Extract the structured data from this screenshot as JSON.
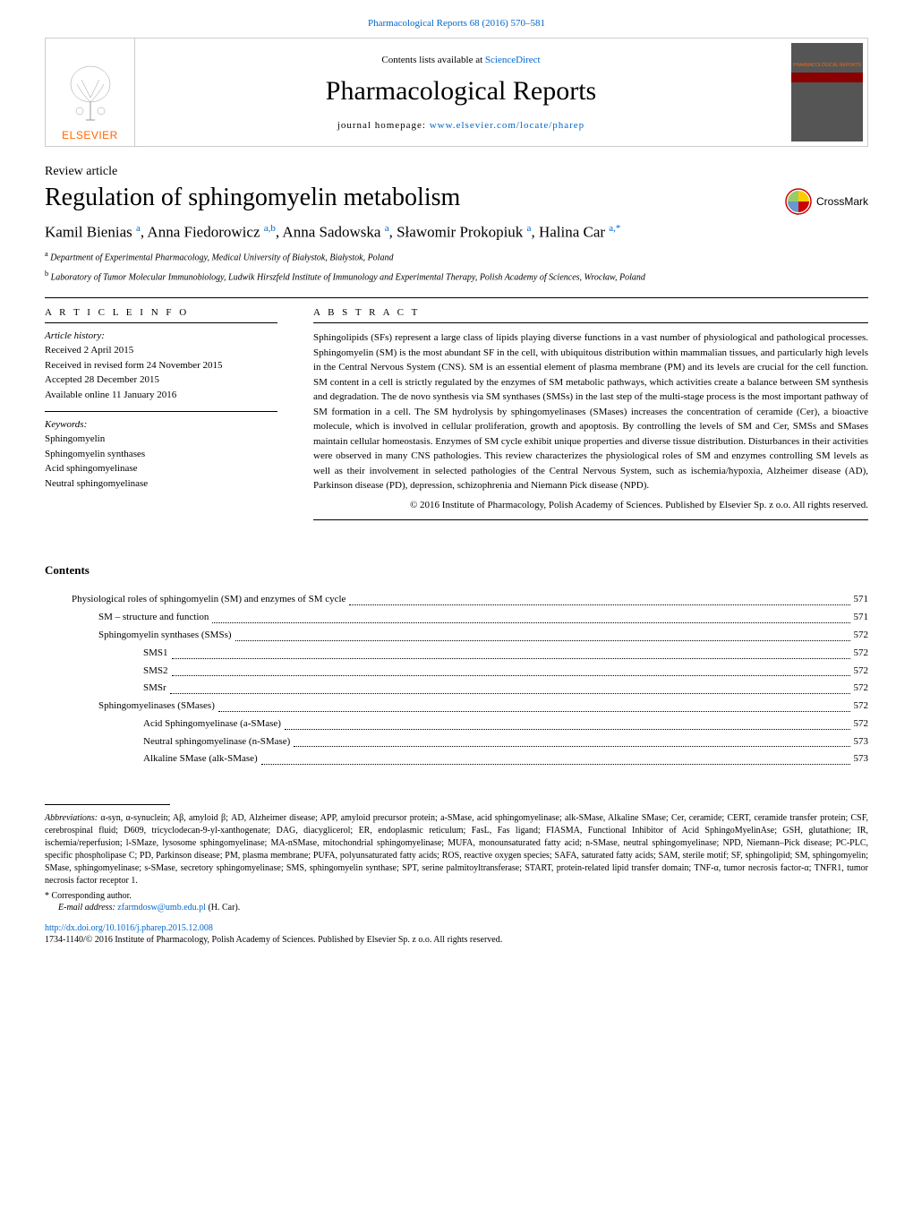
{
  "top_reference": "Pharmacological Reports 68 (2016) 570–581",
  "banner": {
    "contents_available": "Contents lists available at ",
    "sciencedirect": "ScienceDirect",
    "journal_name": "Pharmacological Reports",
    "homepage_label": "journal homepage: ",
    "homepage_url": "www.elsevier.com/locate/pharep",
    "publisher": "ELSEVIER",
    "cover_text": "PHARMACOLOGICAL REPORTS"
  },
  "article_type": "Review article",
  "title": "Regulation of sphingomyelin metabolism",
  "crossmark": "CrossMark",
  "authors_html": "Kamil Bienias <sup>a</sup>, Anna Fiedorowicz <sup>a,b</sup>, Anna Sadowska <sup>a</sup>, Sławomir Prokopiuk <sup>a</sup>, Halina Car <sup>a,*</sup>",
  "affiliations": [
    {
      "sup": "a",
      "text": "Department of Experimental Pharmacology, Medical University of Białystok, Białystok, Poland"
    },
    {
      "sup": "b",
      "text": "Laboratory of Tumor Molecular Immunobiology, Ludwik Hirszfeld Institute of Immunology and Experimental Therapy, Polish Academy of Sciences, Wrocław, Poland"
    }
  ],
  "info": {
    "header": "A R T I C L E   I N F O",
    "history_label": "Article history:",
    "history": [
      "Received 2 April 2015",
      "Received in revised form 24 November 2015",
      "Accepted 28 December 2015",
      "Available online 11 January 2016"
    ],
    "keywords_label": "Keywords:",
    "keywords": [
      "Sphingomyelin",
      "Sphingomyelin synthases",
      "Acid sphingomyelinase",
      "Neutral sphingomyelinase"
    ]
  },
  "abstract": {
    "header": "A B S T R A C T",
    "text": "Sphingolipids (SFs) represent a large class of lipids playing diverse functions in a vast number of physiological and pathological processes. Sphingomyelin (SM) is the most abundant SF in the cell, with ubiquitous distribution within mammalian tissues, and particularly high levels in the Central Nervous System (CNS). SM is an essential element of plasma membrane (PM) and its levels are crucial for the cell function. SM content in a cell is strictly regulated by the enzymes of SM metabolic pathways, which activities create a balance between SM synthesis and degradation. The de novo synthesis via SM synthases (SMSs) in the last step of the multi-stage process is the most important pathway of SM formation in a cell. The SM hydrolysis by sphingomyelinases (SMases) increases the concentration of ceramide (Cer), a bioactive molecule, which is involved in cellular proliferation, growth and apoptosis. By controlling the levels of SM and Cer, SMSs and SMases maintain cellular homeostasis. Enzymes of SM cycle exhibit unique properties and diverse tissue distribution. Disturbances in their activities were observed in many CNS pathologies. This review characterizes the physiological roles of SM and enzymes controlling SM levels as well as their involvement in selected pathologies of the Central Nervous System, such as ischemia/hypoxia, Alzheimer disease (AD), Parkinson disease (PD), depression, schizophrenia and Niemann Pick disease (NPD).",
    "copyright": "© 2016 Institute of Pharmacology, Polish Academy of Sciences. Published by Elsevier Sp. z o.o. All rights reserved."
  },
  "contents": {
    "title": "Contents",
    "items": [
      {
        "indent": 1,
        "text": "Physiological roles of sphingomyelin (SM) and enzymes of SM cycle",
        "page": "571"
      },
      {
        "indent": 2,
        "text": "SM – structure and function",
        "page": "571"
      },
      {
        "indent": 2,
        "text": "Sphingomyelin synthases (SMSs)",
        "page": "572"
      },
      {
        "indent": 3,
        "text": "SMS1",
        "page": "572"
      },
      {
        "indent": 3,
        "text": "SMS2",
        "page": "572"
      },
      {
        "indent": 3,
        "text": "SMSr",
        "page": "572"
      },
      {
        "indent": 2,
        "text": "Sphingomyelinases (SMases)",
        "page": "572"
      },
      {
        "indent": 3,
        "text": "Acid Sphingomyelinase (a-SMase)",
        "page": "572"
      },
      {
        "indent": 3,
        "text": "Neutral sphingomyelinase (n-SMase)",
        "page": "573"
      },
      {
        "indent": 3,
        "text": "Alkaline SMase (alk-SMase)",
        "page": "573"
      }
    ]
  },
  "footnotes": {
    "abbrev_label": "Abbreviations:",
    "abbrev_text": " α-syn, α-synuclein; Aβ, amyloid β; AD, Alzheimer disease; APP, amyloid precursor protein; a-SMase, acid sphingomyelinase; alk-SMase, Alkaline SMase; Cer, ceramide; CERT, ceramide transfer protein; CSF, cerebrospinal fluid; D609, tricyclodecan-9-yl-xanthogenate; DAG, diacyglicerol; ER, endoplasmic reticulum; FasL, Fas ligand; FIASMA, Functional Inhibitor of Acid SphingoMyelinAse; GSH, glutathione; IR, ischemia/reperfusion; l-SMaze, lysosome sphingomyelinase; MA-nSMase, mitochondrial sphingomyelinase; MUFA, monounsaturated fatty acid; n-SMase, neutral sphingomyelinase; NPD, Niemann–Pick disease; PC-PLC, specific phospholipase C; PD, Parkinson disease; PM, plasma membrane; PUFA, polyunsaturated fatty acids; ROS, reactive oxygen species; SAFA, saturated fatty acids; SAM, sterile motif; SF, sphingolipid; SM, sphingomyelin; SMase, sphingomyelinase; s-SMase, secretory sphingomyelinase; SMS, sphingomyelin synthase; SPT, serine palmitoyltransferase; START, protein-related lipid transfer domain; TNF-α, tumor necrosis factor-α; TNFR1, tumor necrosis factor receptor 1.",
    "corresponding": "* Corresponding author.",
    "email_label": "E-mail address: ",
    "email": "zfarmdosw@umb.edu.pl",
    "email_suffix": " (H. Car).",
    "doi": "http://dx.doi.org/10.1016/j.pharep.2015.12.008",
    "issn": "1734-1140/© 2016 Institute of Pharmacology, Polish Academy of Sciences. Published by Elsevier Sp. z o.o. All rights reserved."
  },
  "colors": {
    "link": "#0066cc",
    "elsevier_orange": "#ff6600",
    "crossmark_red": "#cc0000",
    "crossmark_yellow": "#ffcc00",
    "crossmark_blue": "#6699cc",
    "crossmark_green": "#99cc66"
  }
}
